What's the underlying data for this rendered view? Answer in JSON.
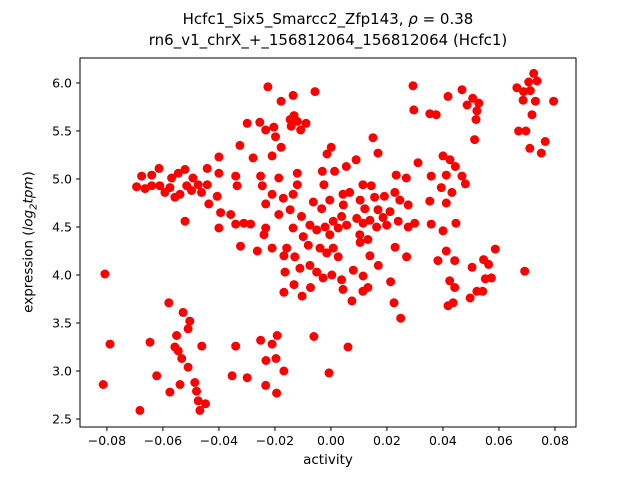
{
  "figure": {
    "title": {
      "line1_prefix": "Hcfc1_Six5_Smarcc2_Zfp143, ",
      "rho_symbol": "ρ",
      "line1_suffix": " = 0.38",
      "line2": "rn6_v1_chrX_+_156812064_156812064 (Hcfc1)"
    },
    "x_axis": {
      "label": "activity"
    },
    "y_axis": {
      "label_prefix": "expression (",
      "label_log": "log",
      "label_sub": "2",
      "label_tpm": "tpm",
      "label_suffix": ")"
    }
  },
  "chart_data": {
    "type": "scatter",
    "title": "Hcfc1_Six5_Smarcc2_Zfp143, ρ = 0.38",
    "subtitle": "rn6_v1_chrX_+_156812064_156812064 (Hcfc1)",
    "xlabel": "activity",
    "ylabel": "expression (log2tpm)",
    "rho": 0.38,
    "marker_color": "#ff0000",
    "marker_diameter_px": 9,
    "grid": false,
    "legend": "none",
    "xlim": [
      -0.0896,
      0.0875
    ],
    "ylim": [
      2.417,
      6.26
    ],
    "x_tick_values": [
      -0.08,
      -0.06,
      -0.04,
      -0.02,
      0.0,
      0.02,
      0.04,
      0.06,
      0.08
    ],
    "x_tick_labels": [
      "−0.08",
      "−0.06",
      "−0.04",
      "−0.02",
      "0.00",
      "0.02",
      "0.04",
      "0.06",
      "0.08"
    ],
    "y_tick_values": [
      2.5,
      3.0,
      3.5,
      4.0,
      4.5,
      5.0,
      5.5,
      6.0
    ],
    "y_tick_labels": [
      "2.5",
      "3.0",
      "3.5",
      "4.0",
      "4.5",
      "5.0",
      "5.5",
      "6.0"
    ],
    "points": [
      [
        -0.0676,
        5.03
      ],
      [
        -0.064,
        5.04
      ],
      [
        -0.0614,
        5.11
      ],
      [
        -0.0569,
        5.01
      ],
      [
        -0.0545,
        5.06
      ],
      [
        -0.0521,
        5.1
      ],
      [
        -0.0493,
        5.01
      ],
      [
        -0.0225,
        5.96
      ],
      [
        -0.0178,
        5.81
      ],
      [
        -0.0135,
        5.87
      ],
      [
        -0.0057,
        5.91
      ],
      [
        -0.0299,
        5.58
      ],
      [
        -0.0254,
        5.59
      ],
      [
        -0.0233,
        5.51
      ],
      [
        -0.0204,
        5.54
      ],
      [
        -0.0146,
        5.62
      ],
      [
        -0.0132,
        5.66
      ],
      [
        -0.012,
        5.6
      ],
      [
        -0.0142,
        5.55
      ],
      [
        -0.0089,
        5.58
      ],
      [
        -0.0108,
        5.51
      ],
      [
        -0.0198,
        5.44
      ],
      [
        -0.0178,
        5.33
      ],
      [
        -0.0325,
        5.35
      ],
      [
        -0.04,
        5.23
      ],
      [
        -0.0278,
        5.22
      ],
      [
        -0.021,
        5.24
      ],
      [
        -0.0442,
        5.11
      ],
      [
        -0.04,
        5.06
      ],
      [
        -0.034,
        5.03
      ],
      [
        -0.0251,
        5.03
      ],
      [
        -0.0186,
        5.01
      ],
      [
        -0.012,
        5.06
      ],
      [
        -0.0031,
        5.08
      ],
      [
        0.0293,
        5.97
      ],
      [
        0.0418,
        5.86
      ],
      [
        0.0296,
        5.72
      ],
      [
        0.0353,
        5.68
      ],
      [
        0.0376,
        5.67
      ],
      [
        0.0001,
        5.33
      ],
      [
        -0.0014,
        5.26
      ],
      [
        0.015,
        5.43
      ],
      [
        0.0168,
        5.27
      ],
      [
        0.009,
        5.2
      ],
      [
        0.0055,
        5.13
      ],
      [
        0.0013,
        5.08
      ],
      [
        0.0311,
        5.17
      ],
      [
        0.04,
        5.24
      ],
      [
        0.0425,
        5.2
      ],
      [
        0.0233,
        5.04
      ],
      [
        0.0269,
        5.01
      ],
      [
        0.0358,
        5.03
      ],
      [
        0.0412,
        5.04
      ],
      [
        0.0468,
        5.93
      ],
      [
        0.0506,
        5.84
      ],
      [
        0.0486,
        5.77
      ],
      [
        0.0528,
        5.79
      ],
      [
        0.0521,
        5.71
      ],
      [
        0.0518,
        5.62
      ],
      [
        0.0724,
        6.1
      ],
      [
        0.0706,
        6.01
      ],
      [
        0.0736,
        6.02
      ],
      [
        0.0664,
        5.95
      ],
      [
        0.0688,
        5.91
      ],
      [
        0.0712,
        5.92
      ],
      [
        0.0686,
        5.82
      ],
      [
        0.073,
        5.81
      ],
      [
        0.0795,
        5.81
      ],
      [
        0.0718,
        5.67
      ],
      [
        0.067,
        5.5
      ],
      [
        0.0696,
        5.5
      ],
      [
        0.071,
        5.32
      ],
      [
        0.0765,
        5.39
      ],
      [
        0.0751,
        5.27
      ],
      [
        0.0513,
        5.41
      ],
      [
        0.0444,
        5.13
      ],
      [
        0.0468,
        5.03
      ],
      [
        -0.0694,
        4.92
      ],
      [
        -0.0664,
        4.9
      ],
      [
        -0.064,
        4.93
      ],
      [
        -0.0611,
        4.93
      ],
      [
        -0.0593,
        4.86
      ],
      [
        -0.0575,
        4.91
      ],
      [
        -0.0557,
        4.81
      ],
      [
        -0.0539,
        4.84
      ],
      [
        -0.0515,
        4.93
      ],
      [
        -0.0498,
        4.88
      ],
      [
        -0.0474,
        4.94
      ],
      [
        -0.0462,
        4.86
      ],
      [
        -0.0521,
        4.56
      ],
      [
        -0.0807,
        4.01
      ],
      [
        -0.0579,
        3.71
      ],
      [
        -0.0442,
        4.94
      ],
      [
        -0.0335,
        4.93
      ],
      [
        -0.0245,
        4.93
      ],
      [
        -0.012,
        4.94
      ],
      [
        -0.0025,
        4.94
      ],
      [
        -0.0406,
        4.82
      ],
      [
        -0.021,
        4.84
      ],
      [
        -0.0135,
        4.84
      ],
      [
        -0.0436,
        4.74
      ],
      [
        -0.0233,
        4.74
      ],
      [
        -0.0394,
        4.65
      ],
      [
        -0.0358,
        4.63
      ],
      [
        -0.0186,
        4.63
      ],
      [
        -0.04,
        4.49
      ],
      [
        -0.034,
        4.53
      ],
      [
        -0.0311,
        4.54
      ],
      [
        -0.0287,
        4.53
      ],
      [
        -0.0233,
        4.49
      ],
      [
        -0.0239,
        4.42
      ],
      [
        -0.0323,
        4.3
      ],
      [
        -0.0263,
        4.25
      ],
      [
        -0.021,
        4.28
      ],
      [
        -0.0168,
        4.2
      ],
      [
        -0.0168,
        3.82
      ],
      [
        -0.0103,
        3.78
      ],
      [
        -0.0073,
        3.87
      ],
      [
        -0.0132,
        3.9
      ],
      [
        0.0043,
        4.84
      ],
      [
        0.0067,
        4.86
      ],
      [
        0.0114,
        4.94
      ],
      [
        0.0144,
        4.93
      ],
      [
        0.0156,
        4.81
      ],
      [
        0.0228,
        4.86
      ],
      [
        0.0353,
        4.77
      ],
      [
        0.0394,
        4.91
      ],
      [
        0.0412,
        4.75
      ],
      [
        0.0168,
        4.68
      ],
      [
        0.0186,
        4.6
      ],
      [
        0.0299,
        4.54
      ],
      [
        0.0358,
        4.53
      ],
      [
        0.0103,
        4.42
      ],
      [
        0.0132,
        4.37
      ],
      [
        0.04,
        4.46
      ],
      [
        0.0412,
        4.25
      ],
      [
        0.0382,
        4.15
      ],
      [
        0.0043,
        3.85
      ],
      [
        0.0075,
        3.73
      ],
      [
        0.0114,
        3.83
      ],
      [
        0.0132,
        3.87
      ],
      [
        0.0424,
        3.94
      ],
      [
        0.048,
        4.95
      ],
      [
        0.0432,
        4.86
      ],
      [
        0.0446,
        4.54
      ],
      [
        0.0587,
        4.27
      ],
      [
        0.0442,
        4.15
      ],
      [
        0.0504,
        4.08
      ],
      [
        0.0545,
        4.16
      ],
      [
        0.0563,
        4.11
      ],
      [
        0.0551,
        3.96
      ],
      [
        0.0573,
        3.97
      ],
      [
        0.0692,
        4.04
      ],
      [
        0.0442,
        3.87
      ],
      [
        0.0521,
        3.83
      ],
      [
        0.0497,
        3.76
      ],
      [
        0.0542,
        3.83
      ],
      [
        0.0436,
        3.71
      ],
      [
        -0.0528,
        3.61
      ],
      [
        -0.0504,
        3.52
      ],
      [
        -0.051,
        3.44
      ],
      [
        -0.0551,
        3.37
      ],
      [
        -0.0789,
        3.28
      ],
      [
        -0.0646,
        3.3
      ],
      [
        -0.0557,
        3.25
      ],
      [
        -0.0545,
        3.21
      ],
      [
        -0.0461,
        3.26
      ],
      [
        -0.0533,
        3.13
      ],
      [
        -0.051,
        3.04
      ],
      [
        -0.0622,
        2.95
      ],
      [
        -0.0813,
        2.86
      ],
      [
        -0.0539,
        2.86
      ],
      [
        -0.0575,
        2.78
      ],
      [
        -0.0486,
        2.88
      ],
      [
        -0.048,
        2.79
      ],
      [
        -0.0474,
        2.69
      ],
      [
        -0.0468,
        2.59
      ],
      [
        -0.0448,
        2.66
      ],
      [
        -0.0682,
        2.59
      ],
      [
        -0.034,
        3.26
      ],
      [
        -0.0251,
        3.32
      ],
      [
        -0.021,
        3.28
      ],
      [
        -0.0192,
        3.37
      ],
      [
        -0.0061,
        3.36
      ],
      [
        -0.0232,
        3.11
      ],
      [
        -0.0196,
        3.13
      ],
      [
        -0.0168,
        3.0
      ],
      [
        -0.0353,
        2.95
      ],
      [
        -0.0299,
        2.93
      ],
      [
        -0.0233,
        2.85
      ],
      [
        -0.0194,
        2.77
      ],
      [
        -0.0007,
        2.98
      ],
      [
        0.0225,
        3.71
      ],
      [
        0.0249,
        3.55
      ],
      [
        0.0418,
        3.68
      ],
      [
        0.0061,
        3.25
      ],
      [
        -0.017,
        4.8
      ],
      [
        -0.0146,
        4.68
      ],
      [
        -0.0063,
        4.76
      ],
      [
        -0.0033,
        4.69
      ],
      [
        -0.0004,
        4.78
      ],
      [
        0.0044,
        4.73
      ],
      [
        0.0104,
        4.78
      ],
      [
        0.0121,
        4.69
      ],
      [
        0.0191,
        4.82
      ],
      [
        0.0211,
        4.66
      ],
      [
        0.0246,
        4.78
      ],
      [
        0.0276,
        4.73
      ],
      [
        -0.0135,
        4.49
      ],
      [
        -0.0105,
        4.61
      ],
      [
        -0.0099,
        4.4
      ],
      [
        -0.0075,
        4.52
      ],
      [
        -0.0051,
        4.47
      ],
      [
        -0.0021,
        4.5
      ],
      [
        -0.0004,
        4.42
      ],
      [
        0.0008,
        4.56
      ],
      [
        0.0026,
        4.49
      ],
      [
        0.0038,
        4.61
      ],
      [
        0.0056,
        4.52
      ],
      [
        0.0092,
        4.59
      ],
      [
        0.0115,
        4.54
      ],
      [
        0.0139,
        4.57
      ],
      [
        0.0163,
        4.5
      ],
      [
        0.0199,
        4.52
      ],
      [
        0.024,
        4.56
      ],
      [
        0.0276,
        4.5
      ],
      [
        -0.0158,
        4.28
      ],
      [
        -0.0129,
        4.19
      ],
      [
        -0.0081,
        4.31
      ],
      [
        -0.0039,
        4.28
      ],
      [
        -0.0015,
        4.23
      ],
      [
        0.0008,
        4.28
      ],
      [
        0.0026,
        4.19
      ],
      [
        0.0104,
        4.34
      ],
      [
        0.0139,
        4.2
      ],
      [
        0.0229,
        4.29
      ],
      [
        0.027,
        4.19
      ],
      [
        -0.0164,
        4.03
      ],
      [
        -0.0111,
        4.07
      ],
      [
        -0.0075,
        4.1
      ],
      [
        -0.0051,
        4.03
      ],
      [
        -0.0028,
        3.97
      ],
      [
        0.0003,
        4.0
      ],
      [
        0.0038,
        3.95
      ],
      [
        0.008,
        4.05
      ],
      [
        0.0115,
        3.99
      ],
      [
        0.0169,
        4.1
      ],
      [
        0.0213,
        3.93
      ]
    ]
  }
}
